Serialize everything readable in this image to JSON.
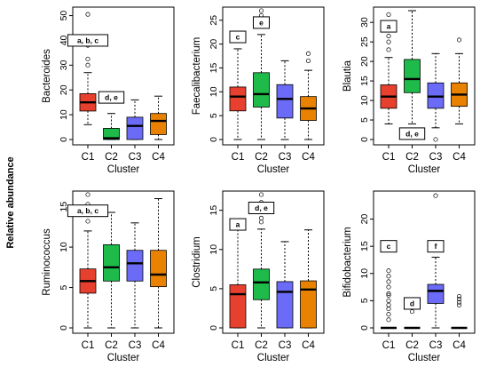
{
  "figure": {
    "shared_ylabel": "Relative abundance",
    "palette": {
      "C1": "#e8402f",
      "C2": "#1ebb4b",
      "C3": "#6b6bf7",
      "C4": "#e88200"
    }
  },
  "chart_data": [
    {
      "type": "box",
      "ylabel": "Bacteroides",
      "xlabel": "Cluster",
      "categories": [
        "C1",
        "C2",
        "C3",
        "C4"
      ],
      "ylim": [
        0,
        52
      ],
      "yticks": [
        0,
        10,
        20,
        30,
        40,
        50
      ],
      "boxes": [
        {
          "min": 6,
          "q1": 11.5,
          "median": 15,
          "q3": 18.5,
          "max": 27,
          "outliers": [
            30,
            32.5,
            38,
            50.5
          ]
        },
        {
          "min": 0,
          "q1": 0,
          "median": 0.5,
          "q3": 4.5,
          "max": 10.5,
          "outliers": []
        },
        {
          "min": 0,
          "q1": 0,
          "median": 5.5,
          "q3": 9,
          "max": 16,
          "outliers": []
        },
        {
          "min": 0,
          "q1": 2,
          "median": 7.5,
          "q3": 10.5,
          "max": 17.5,
          "outliers": []
        }
      ],
      "annotations": [
        {
          "text": "a, b, c",
          "x": 1,
          "y": 40
        },
        {
          "text": "d, e",
          "x": 2,
          "y": 17
        }
      ]
    },
    {
      "type": "box",
      "ylabel": "Faecalibacterium",
      "xlabel": "Cluster",
      "categories": [
        "C1",
        "C2",
        "C3",
        "C4"
      ],
      "ylim": [
        0,
        27
      ],
      "yticks": [
        0,
        5,
        10,
        15,
        20,
        25
      ],
      "boxes": [
        {
          "min": 0,
          "q1": 6,
          "median": 9,
          "q3": 11,
          "max": 19,
          "outliers": []
        },
        {
          "min": 0,
          "q1": 6.8,
          "median": 9.5,
          "q3": 14,
          "max": 22,
          "outliers": [
            24.5,
            26,
            27
          ]
        },
        {
          "min": 0,
          "q1": 4.5,
          "median": 8.5,
          "q3": 11.5,
          "max": 16.5,
          "outliers": []
        },
        {
          "min": 0,
          "q1": 4,
          "median": 6.5,
          "q3": 9,
          "max": 14.5,
          "outliers": [
            16.5,
            18
          ]
        }
      ],
      "annotations": [
        {
          "text": "c",
          "x": 1,
          "y": 21.5
        },
        {
          "text": "e",
          "x": 2,
          "y": 24.5
        }
      ]
    },
    {
      "type": "box",
      "ylabel": "Blautia",
      "xlabel": "Cluster",
      "categories": [
        "C1",
        "C2",
        "C3",
        "C4"
      ],
      "ylim": [
        0,
        33
      ],
      "yticks": [
        0,
        5,
        10,
        15,
        20,
        25,
        30
      ],
      "boxes": [
        {
          "min": 4,
          "q1": 8,
          "median": 11,
          "q3": 14,
          "max": 21,
          "outliers": [
            23,
            25,
            26.5,
            32
          ]
        },
        {
          "min": 4,
          "q1": 12,
          "median": 15.5,
          "q3": 20.5,
          "max": 33,
          "outliers": []
        },
        {
          "min": 3,
          "q1": 8,
          "median": 11,
          "q3": 14.5,
          "max": 22,
          "outliers": [
            0
          ]
        },
        {
          "min": 4,
          "q1": 8.5,
          "median": 11.5,
          "q3": 14.5,
          "max": 22,
          "outliers": [
            25.5
          ]
        }
      ],
      "annotations": [
        {
          "text": "a",
          "x": 1,
          "y": 29
        },
        {
          "text": "d, e",
          "x": 2,
          "y": 1.5
        }
      ]
    },
    {
      "type": "box",
      "ylabel": "Ruminococcus",
      "xlabel": "Cluster",
      "categories": [
        "C1",
        "C2",
        "C3",
        "C4"
      ],
      "ylim": [
        0,
        16.5
      ],
      "yticks": [
        0,
        5,
        10,
        15
      ],
      "boxes": [
        {
          "min": 0,
          "q1": 4.3,
          "median": 5.8,
          "q3": 7.3,
          "max": 12,
          "outliers": [
            13.2,
            14,
            15.3,
            16.5
          ]
        },
        {
          "min": 0,
          "q1": 5.8,
          "median": 7.5,
          "q3": 10.3,
          "max": 14.3,
          "outliers": []
        },
        {
          "min": 0,
          "q1": 5.8,
          "median": 8,
          "q3": 9.6,
          "max": 13,
          "outliers": []
        },
        {
          "min": 0,
          "q1": 5.1,
          "median": 6.6,
          "q3": 9.6,
          "max": 16,
          "outliers": []
        }
      ],
      "annotations": [
        {
          "text": "a, b, c",
          "x": 1,
          "y": 14.5
        }
      ]
    },
    {
      "type": "box",
      "ylabel": "Clostridium",
      "xlabel": "Cluster",
      "categories": [
        "C1",
        "C2",
        "C3",
        "C4"
      ],
      "ylim": [
        0,
        17
      ],
      "yticks": [
        0,
        5,
        10,
        15
      ],
      "boxes": [
        {
          "min": 0,
          "q1": 0,
          "median": 4.3,
          "q3": 5.5,
          "max": 12.7,
          "outliers": []
        },
        {
          "min": 0,
          "q1": 3.6,
          "median": 5.8,
          "q3": 7.5,
          "max": 12.6,
          "outliers": [
            13.5,
            14,
            14.8,
            16,
            17
          ]
        },
        {
          "min": 0,
          "q1": 0,
          "median": 4.6,
          "q3": 5.9,
          "max": 11,
          "outliers": []
        },
        {
          "min": 0,
          "q1": 0,
          "median": 4.9,
          "q3": 6,
          "max": 12.5,
          "outliers": []
        }
      ],
      "annotations": [
        {
          "text": "a",
          "x": 1,
          "y": 13.2
        },
        {
          "text": "d, e",
          "x": 2,
          "y": 15.3
        }
      ]
    },
    {
      "type": "box",
      "ylabel": "Bifidobacterium",
      "xlabel": "Cluster",
      "categories": [
        "C1",
        "C2",
        "C3",
        "C4"
      ],
      "ylim": [
        0,
        24.5
      ],
      "yticks": [
        0,
        5,
        10,
        15,
        20
      ],
      "boxes": [
        {
          "min": 0,
          "q1": 0,
          "median": 0,
          "q3": 0,
          "max": 0,
          "outliers": [
            1.5,
            2.5,
            3.5,
            4.2,
            5,
            6,
            6.3,
            7.5,
            8.5,
            9.5,
            10.5
          ]
        },
        {
          "min": 0,
          "q1": 0,
          "median": 0,
          "q3": 0,
          "max": 0,
          "outliers": [
            3,
            3.7,
            4.5
          ]
        },
        {
          "min": 0,
          "q1": 4.5,
          "median": 6.8,
          "q3": 8,
          "max": 13,
          "outliers": [
            24.3
          ]
        },
        {
          "min": 0,
          "q1": 0,
          "median": 0,
          "q3": 0,
          "max": 0,
          "outliers": [
            4.2,
            4.7,
            5.3,
            5.8
          ]
        }
      ],
      "annotations": [
        {
          "text": "c",
          "x": 1,
          "y": 15
        },
        {
          "text": "d",
          "x": 2,
          "y": 4.5
        },
        {
          "text": "f",
          "x": 3,
          "y": 15
        }
      ]
    }
  ]
}
